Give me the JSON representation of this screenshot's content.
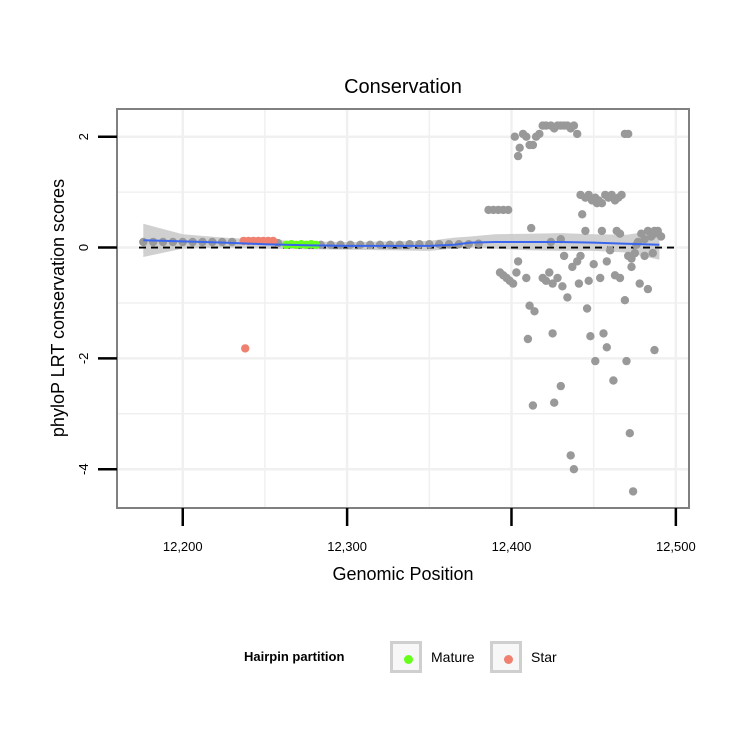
{
  "chart_data": {
    "type": "scatter",
    "title": "Conservation",
    "xlabel": "Genomic Position",
    "ylabel": "phyloP LRT conservation scores",
    "xlim": [
      12160,
      12508
    ],
    "ylim": [
      -4.7,
      2.5
    ],
    "xticks": [
      12200,
      12300,
      12400,
      12500
    ],
    "xtick_labels": [
      "12,200",
      "12,300",
      "12,400",
      "12,500"
    ],
    "yticks": [
      2,
      0,
      -2,
      -4
    ],
    "ytick_labels": [
      "2",
      "0",
      "-2",
      "-4"
    ],
    "grid": true,
    "reference_line": {
      "y": 0,
      "style": "dashed"
    },
    "legend": {
      "title": "Hairpin partition",
      "position": "bottom",
      "entries": [
        {
          "label": "Mature",
          "color": "#66ff1a"
        },
        {
          "label": "Star",
          "color": "#f08070"
        }
      ]
    },
    "colors": {
      "other": "#999999",
      "mature": "#66ff1a",
      "star": "#f08070",
      "smooth": "#3a66ee",
      "ribbon": "#c8c8c8",
      "panel_border": "#808080",
      "grid": "#f0f0f0"
    },
    "series": [
      {
        "name": "Mature",
        "color": "#66ff1a",
        "x": [
          12263,
          12266,
          12269,
          12272,
          12275,
          12278,
          12281
        ],
        "y": [
          0.05,
          0.06,
          0.05,
          0.06,
          0.05,
          0.06,
          0.05
        ]
      },
      {
        "name": "Star",
        "color": "#f08070",
        "x": [
          12237,
          12240,
          12243,
          12246,
          12249,
          12252,
          12255,
          12238
        ],
        "y": [
          0.12,
          0.12,
          0.12,
          0.12,
          0.12,
          0.12,
          0.12,
          -1.82
        ]
      },
      {
        "color": "#999999",
        "x": [
          12176,
          12182,
          12188,
          12194,
          12200,
          12206,
          12212,
          12218,
          12224,
          12230,
          12258,
          12284,
          12290,
          12296,
          12302,
          12308,
          12314,
          12320,
          12326,
          12332,
          12338,
          12344,
          12350,
          12356,
          12362,
          12368,
          12374,
          12380,
          12386,
          12389,
          12392,
          12395,
          12398,
          12393,
          12395,
          12397,
          12399,
          12401,
          12403,
          12402,
          12404,
          12405,
          12407,
          12409,
          12411,
          12413,
          12415,
          12417,
          12419,
          12421,
          12424,
          12426,
          12428,
          12430,
          12432,
          12434,
          12436,
          12438,
          12440,
          12442,
          12445,
          12447,
          12449,
          12451,
          12453,
          12455,
          12457,
          12459,
          12461,
          12463,
          12465,
          12467,
          12469,
          12471,
          12473,
          12475,
          12477,
          12479,
          12481,
          12483,
          12485,
          12487,
          12489,
          12491,
          12425,
          12430,
          12436,
          12438,
          12446,
          12448,
          12451,
          12456,
          12404,
          12409,
          12411,
          12414,
          12419,
          12421,
          12423,
          12425,
          12428,
          12431,
          12434,
          12437,
          12441,
          12447,
          12454,
          12458,
          12462,
          12466,
          12470,
          12473,
          12478,
          12483,
          12487,
          12440,
          12442,
          12463,
          12469,
          12472,
          12487,
          12410,
          12413,
          12426,
          12432,
          12445,
          12452,
          12455,
          12460,
          12466,
          12471,
          12476,
          12481,
          12486,
          12412,
          12424,
          12430,
          12443,
          12450,
          12458,
          12464,
          12474
        ],
        "y": [
          0.1,
          0.1,
          0.1,
          0.1,
          0.1,
          0.1,
          0.1,
          0.1,
          0.1,
          0.1,
          0.08,
          0.05,
          0.05,
          0.05,
          0.05,
          0.05,
          0.05,
          0.05,
          0.05,
          0.05,
          0.06,
          0.06,
          0.06,
          0.06,
          0.06,
          0.06,
          0.06,
          0.07,
          0.68,
          0.68,
          0.68,
          0.68,
          0.68,
          -0.45,
          -0.5,
          -0.55,
          -0.6,
          -0.65,
          -0.45,
          2.0,
          1.65,
          1.8,
          2.05,
          2.0,
          1.85,
          1.85,
          2.0,
          2.05,
          2.2,
          2.2,
          2.2,
          2.15,
          2.2,
          2.2,
          2.2,
          2.2,
          2.15,
          2.2,
          2.05,
          0.95,
          0.9,
          0.95,
          0.85,
          0.9,
          0.85,
          0.8,
          0.95,
          0.9,
          0.95,
          0.85,
          0.9,
          0.95,
          2.05,
          2.05,
          -0.2,
          -0.1,
          0.1,
          0.25,
          -0.15,
          0.3,
          0.2,
          0.25,
          0.3,
          0.2,
          -1.55,
          -2.5,
          -3.75,
          -4.0,
          -1.1,
          -1.6,
          -2.05,
          -1.55,
          -0.25,
          -0.55,
          -1.05,
          -1.15,
          -0.55,
          -0.6,
          -0.45,
          -0.65,
          -0.55,
          -0.7,
          -0.9,
          -0.35,
          -0.65,
          -0.6,
          -0.55,
          -1.8,
          -2.4,
          -0.55,
          -2.05,
          -0.35,
          -0.65,
          -0.75,
          -1.85,
          -0.25,
          -0.15,
          -0.5,
          -0.95,
          -3.35,
          0.3,
          -1.65,
          -2.85,
          -2.8,
          -0.15,
          0.3,
          0.8,
          0.3,
          -0.05,
          0.25,
          -0.15,
          0.05,
          0.15,
          -0.1,
          0.35,
          0.1,
          0.15,
          0.6,
          -0.3,
          -0.25,
          0.3,
          -4.4
        ]
      }
    ],
    "smooth": {
      "x": [
        12176,
        12200,
        12225,
        12250,
        12275,
        12300,
        12325,
        12350,
        12365,
        12375,
        12390,
        12410,
        12430,
        12450,
        12470,
        12490
      ],
      "y": [
        0.13,
        0.11,
        0.09,
        0.06,
        0.04,
        0.03,
        0.03,
        0.03,
        0.05,
        0.09,
        0.1,
        0.1,
        0.1,
        0.09,
        0.07,
        0.05
      ],
      "lower": [
        -0.17,
        -0.02,
        0.0,
        -0.02,
        -0.03,
        -0.04,
        -0.05,
        -0.06,
        -0.02,
        0.0,
        -0.02,
        -0.05,
        -0.06,
        -0.06,
        -0.09,
        -0.22
      ],
      "upper": [
        0.43,
        0.24,
        0.18,
        0.14,
        0.11,
        0.1,
        0.11,
        0.12,
        0.18,
        0.2,
        0.24,
        0.25,
        0.26,
        0.24,
        0.23,
        0.32
      ]
    }
  }
}
